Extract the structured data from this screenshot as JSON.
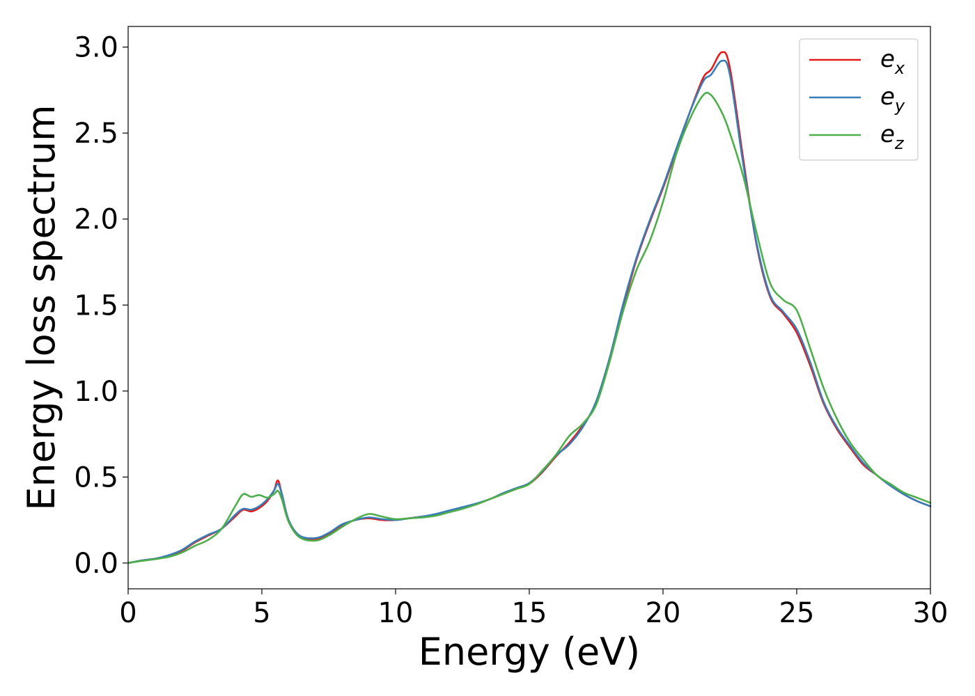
{
  "chart_data": {
    "type": "line",
    "xlabel": "Energy (eV)",
    "ylabel": "Energy loss spectrum",
    "xlim": [
      0,
      30
    ],
    "ylim": [
      -0.15,
      3.12
    ],
    "xticks": [
      "0",
      "5",
      "10",
      "15",
      "20",
      "25",
      "30"
    ],
    "yticks": [
      "0.0",
      "0.5",
      "1.0",
      "1.5",
      "2.0",
      "2.5",
      "3.0"
    ],
    "grid": false,
    "legend_position": "top-right",
    "x": [
      0,
      0.5,
      1,
      1.5,
      2,
      2.5,
      3,
      3.5,
      4,
      4.3,
      4.6,
      4.9,
      5.2,
      5.45,
      5.6,
      5.75,
      6,
      6.4,
      7,
      7.5,
      8,
      8.5,
      9,
      9.5,
      10,
      10.5,
      11,
      11.5,
      12,
      12.5,
      13,
      13.5,
      14,
      14.5,
      15,
      15.5,
      16,
      16.5,
      17,
      17.5,
      18,
      18.5,
      19,
      19.5,
      20,
      20.5,
      21,
      21.5,
      21.8,
      22.2,
      22.5,
      23,
      23.5,
      24,
      24.5,
      25,
      25.5,
      26,
      26.5,
      27,
      27.5,
      28,
      28.5,
      29,
      29.5,
      30
    ],
    "series": [
      {
        "name": "x",
        "color": "#e41a1c",
        "values": [
          0.0,
          0.015,
          0.025,
          0.04,
          0.07,
          0.12,
          0.16,
          0.2,
          0.27,
          0.31,
          0.3,
          0.32,
          0.36,
          0.42,
          0.48,
          0.4,
          0.25,
          0.16,
          0.14,
          0.17,
          0.22,
          0.25,
          0.26,
          0.25,
          0.25,
          0.26,
          0.27,
          0.28,
          0.3,
          0.32,
          0.34,
          0.37,
          0.4,
          0.43,
          0.46,
          0.53,
          0.62,
          0.7,
          0.8,
          0.93,
          1.17,
          1.48,
          1.76,
          1.98,
          2.18,
          2.4,
          2.62,
          2.82,
          2.87,
          2.97,
          2.88,
          2.35,
          1.85,
          1.55,
          1.45,
          1.34,
          1.15,
          0.93,
          0.78,
          0.67,
          0.57,
          0.51,
          0.45,
          0.4,
          0.36,
          0.33
        ]
      },
      {
        "name": "y",
        "color": "#377eb8",
        "values": [
          0.0,
          0.015,
          0.025,
          0.045,
          0.075,
          0.125,
          0.165,
          0.2,
          0.28,
          0.315,
          0.31,
          0.33,
          0.37,
          0.42,
          0.46,
          0.4,
          0.25,
          0.16,
          0.145,
          0.175,
          0.225,
          0.25,
          0.265,
          0.255,
          0.25,
          0.26,
          0.27,
          0.285,
          0.305,
          0.325,
          0.345,
          0.37,
          0.405,
          0.435,
          0.465,
          0.535,
          0.625,
          0.69,
          0.79,
          0.94,
          1.19,
          1.5,
          1.77,
          1.99,
          2.19,
          2.41,
          2.62,
          2.8,
          2.84,
          2.92,
          2.84,
          2.32,
          1.86,
          1.56,
          1.46,
          1.36,
          1.17,
          0.94,
          0.79,
          0.68,
          0.58,
          0.51,
          0.45,
          0.4,
          0.36,
          0.33
        ]
      },
      {
        "name": "z",
        "color": "#4daf4a",
        "values": [
          0.0,
          0.012,
          0.022,
          0.035,
          0.06,
          0.1,
          0.135,
          0.2,
          0.33,
          0.4,
          0.385,
          0.395,
          0.38,
          0.4,
          0.42,
          0.37,
          0.24,
          0.15,
          0.13,
          0.16,
          0.21,
          0.255,
          0.285,
          0.27,
          0.255,
          0.26,
          0.265,
          0.275,
          0.295,
          0.315,
          0.34,
          0.37,
          0.4,
          0.43,
          0.46,
          0.54,
          0.63,
          0.74,
          0.81,
          0.92,
          1.17,
          1.46,
          1.7,
          1.87,
          2.1,
          2.38,
          2.58,
          2.72,
          2.72,
          2.62,
          2.5,
          2.25,
          1.92,
          1.63,
          1.53,
          1.47,
          1.25,
          1.02,
          0.84,
          0.7,
          0.6,
          0.51,
          0.46,
          0.41,
          0.38,
          0.35
        ]
      }
    ]
  }
}
